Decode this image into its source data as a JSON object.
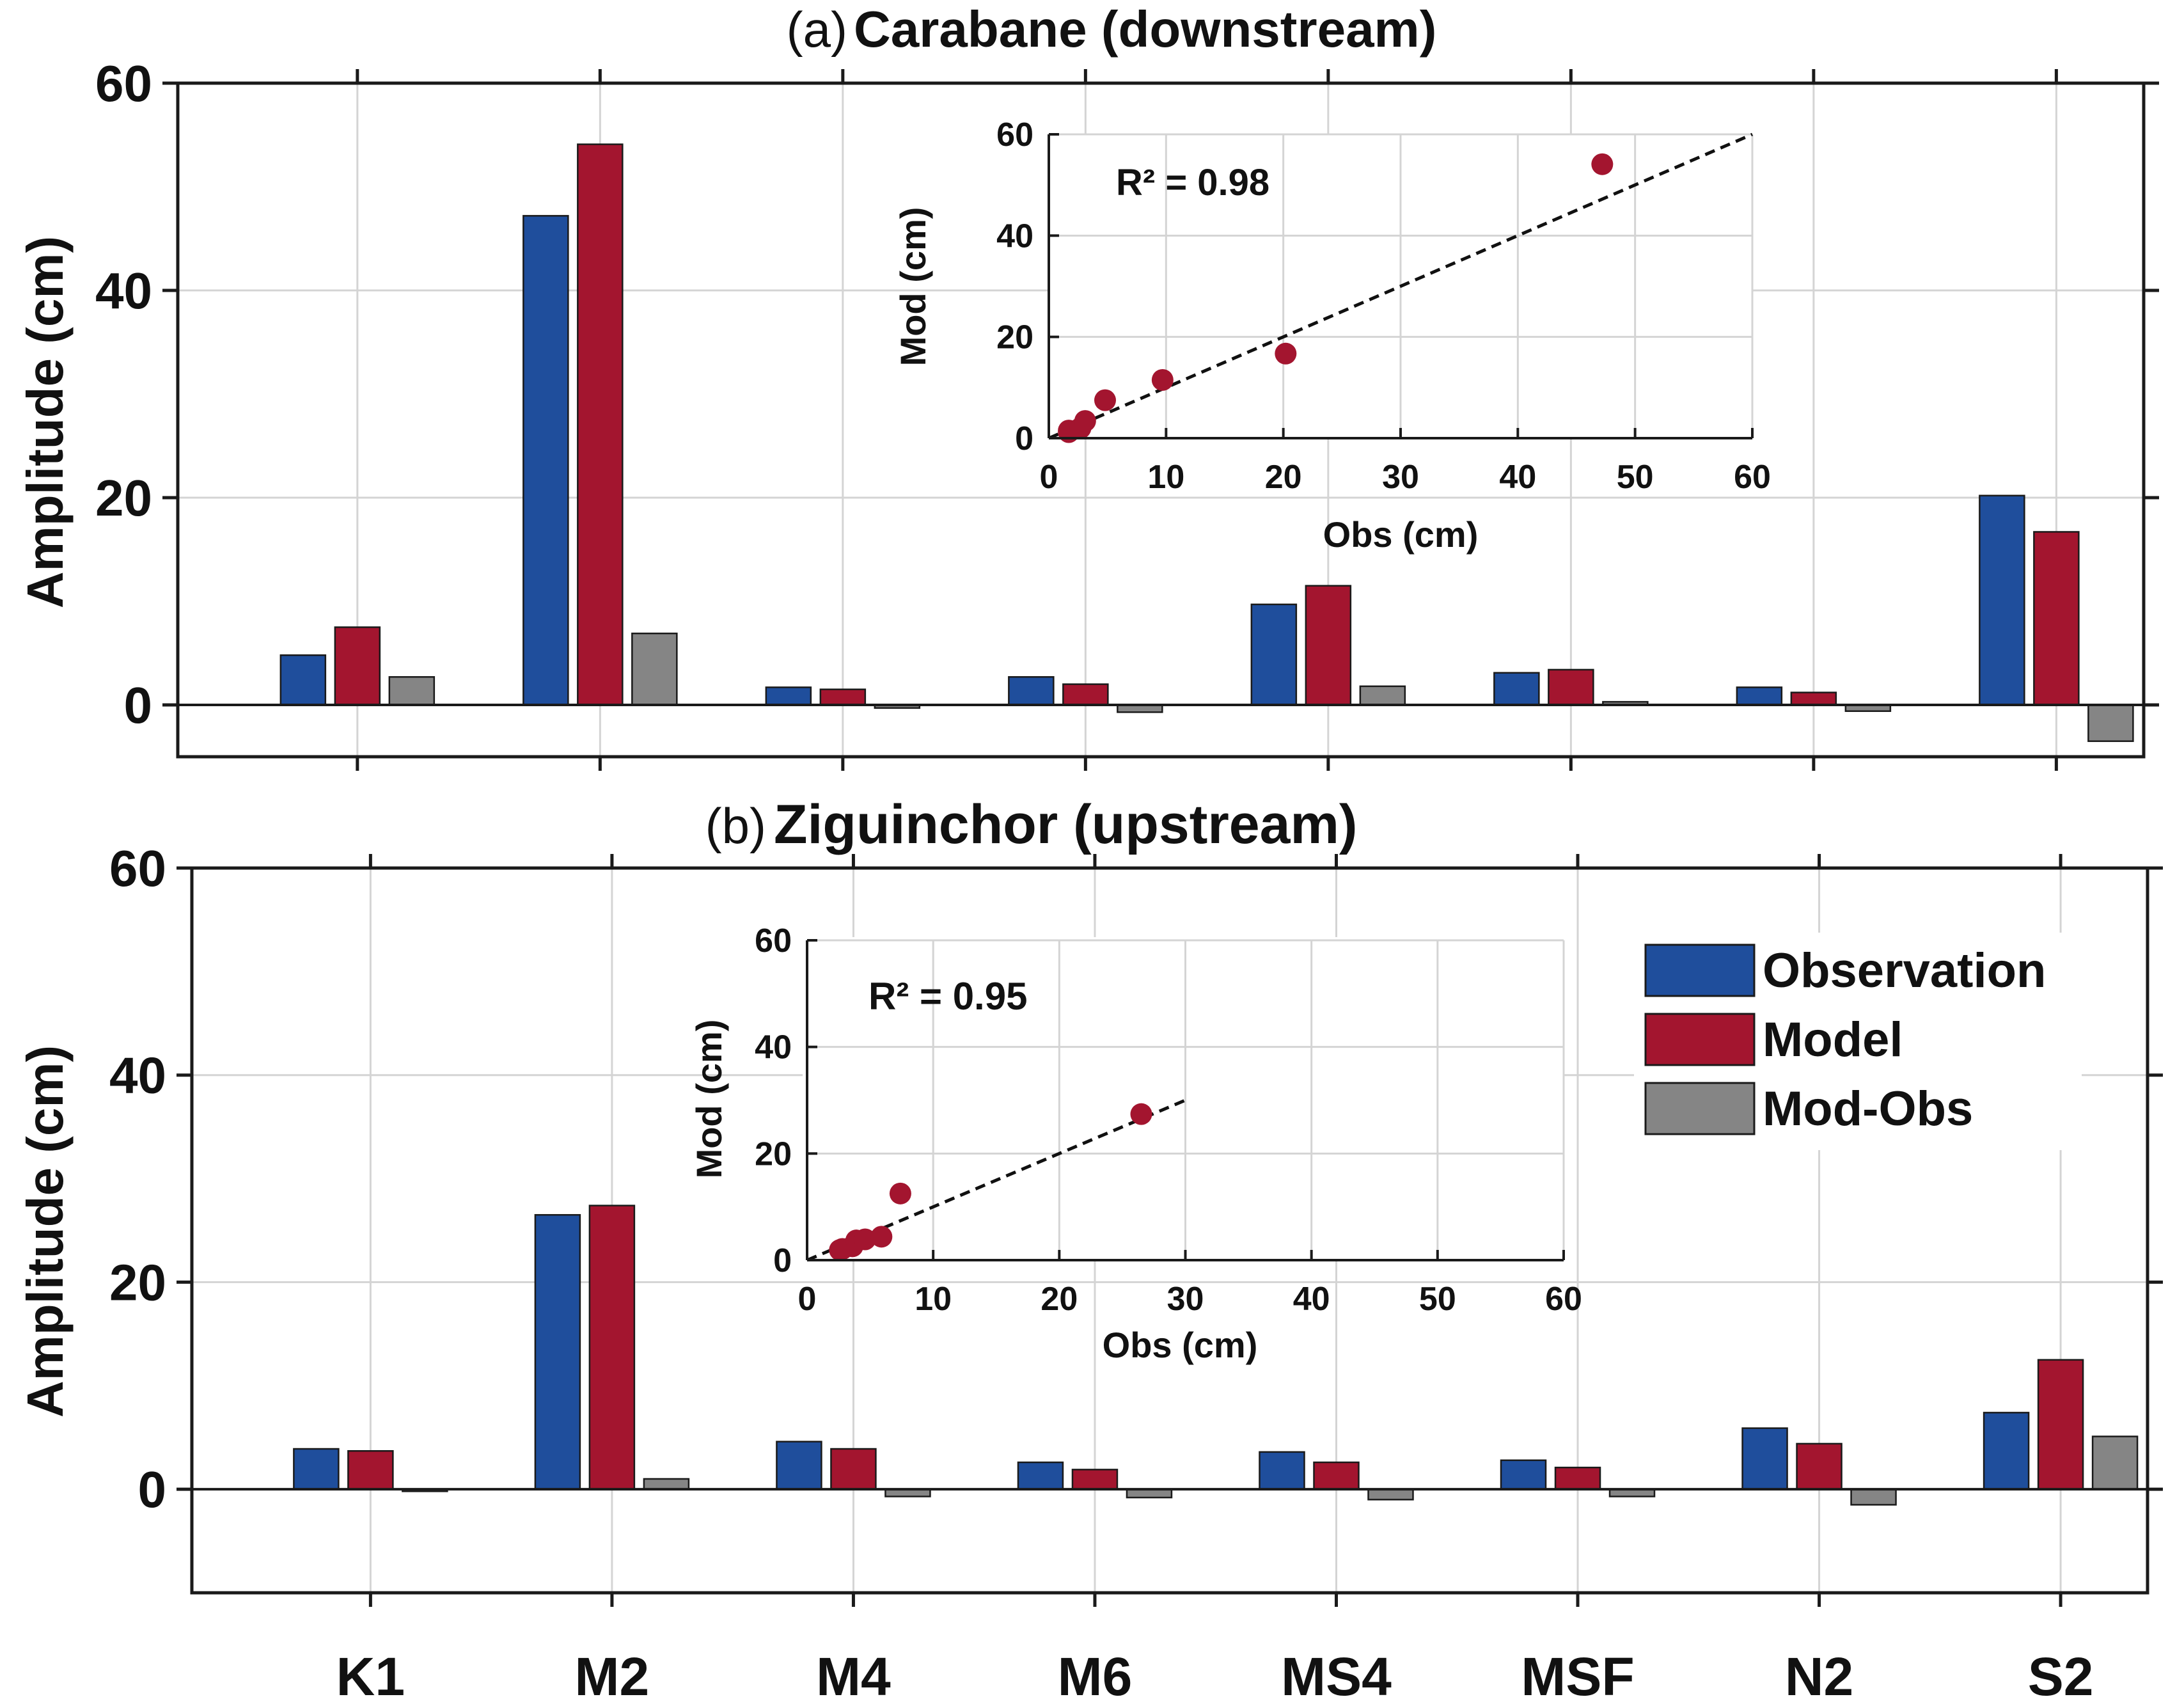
{
  "colors": {
    "observation": "#1f4e9c",
    "model": "#a3152f",
    "diff": "#858585",
    "grid": "#d4d4d4",
    "axis": "#1a1a1a",
    "scatter": "#a3152f"
  },
  "chart_data": [
    {
      "type": "bar",
      "panel": "(a)",
      "title_prefix": "(a)",
      "title": "Carabane (downstream)",
      "ylabel": "Amplitude (cm)",
      "ylim": [
        -5,
        60
      ],
      "yticks": [
        "0",
        "20",
        "40",
        "60"
      ],
      "categories": [
        "K1",
        "M2",
        "M4",
        "M6",
        "MS4",
        "MSF",
        "N2",
        "S2"
      ],
      "series": [
        {
          "name": "Observation",
          "values": [
            4.8,
            47.2,
            1.7,
            2.7,
            9.7,
            3.1,
            1.7,
            20.2
          ]
        },
        {
          "name": "Model",
          "values": [
            7.5,
            54.1,
            1.5,
            2.0,
            11.5,
            3.4,
            1.2,
            16.7
          ]
        },
        {
          "name": "Mod-Obs",
          "values": [
            2.7,
            6.9,
            -0.3,
            -0.7,
            1.8,
            0.3,
            -0.6,
            -3.5
          ]
        }
      ],
      "inset": {
        "type": "scatter",
        "annotation": "R² = 0.98",
        "xlabel": "Obs (cm)",
        "ylabel": "Mod (cm)",
        "xlim": [
          0,
          60
        ],
        "ylim": [
          0,
          60
        ],
        "xticks": [
          "0",
          "10",
          "20",
          "30",
          "40",
          "50",
          "60"
        ],
        "yticks": [
          "0",
          "20",
          "40",
          "60"
        ],
        "points": [
          [
            1.7,
            1.2
          ],
          [
            1.7,
            1.5
          ],
          [
            2.7,
            2.0
          ],
          [
            3.1,
            3.4
          ],
          [
            4.8,
            7.5
          ],
          [
            9.7,
            11.5
          ],
          [
            20.2,
            16.7
          ],
          [
            47.2,
            54.1
          ]
        ],
        "line": {
          "x": [
            0,
            60
          ],
          "y": [
            0,
            60
          ]
        }
      }
    },
    {
      "type": "bar",
      "panel": "(b)",
      "title_prefix": "(b)",
      "title": "Ziguinchor (upstream)",
      "ylabel": "Amplitude (cm)",
      "ylim": [
        -10,
        60
      ],
      "yticks": [
        "0",
        "20",
        "40",
        "60"
      ],
      "categories": [
        "K1",
        "M2",
        "M4",
        "M6",
        "MS4",
        "MSF",
        "N2",
        "S2"
      ],
      "series": [
        {
          "name": "Observation",
          "values": [
            3.9,
            26.5,
            4.6,
            2.6,
            3.6,
            2.8,
            5.9,
            7.4
          ]
        },
        {
          "name": "Model",
          "values": [
            3.7,
            27.4,
            3.9,
            1.9,
            2.6,
            2.1,
            4.4,
            12.5
          ]
        },
        {
          "name": "Mod-Obs",
          "values": [
            -0.2,
            1.0,
            -0.7,
            -0.8,
            -1.0,
            -0.7,
            -1.5,
            5.1
          ]
        }
      ],
      "inset": {
        "type": "scatter",
        "annotation": "R² = 0.95",
        "xlabel": "Obs (cm)",
        "ylabel": "Mod (cm)",
        "xlim": [
          0,
          60
        ],
        "ylim": [
          0,
          60
        ],
        "xticks": [
          "0",
          "10",
          "20",
          "30",
          "40",
          "50",
          "60"
        ],
        "yticks": [
          "0",
          "20",
          "40",
          "60"
        ],
        "points": [
          [
            2.6,
            1.9
          ],
          [
            2.8,
            2.1
          ],
          [
            3.6,
            2.6
          ],
          [
            3.9,
            3.7
          ],
          [
            4.6,
            3.9
          ],
          [
            5.9,
            4.4
          ],
          [
            7.4,
            12.5
          ],
          [
            26.5,
            27.4
          ]
        ],
        "line": {
          "x": [
            0,
            30
          ],
          "y": [
            0,
            30
          ]
        }
      }
    }
  ],
  "legend": {
    "items": [
      "Observation",
      "Model",
      "Mod-Obs"
    ],
    "placement": "top-right of panel (b)"
  }
}
